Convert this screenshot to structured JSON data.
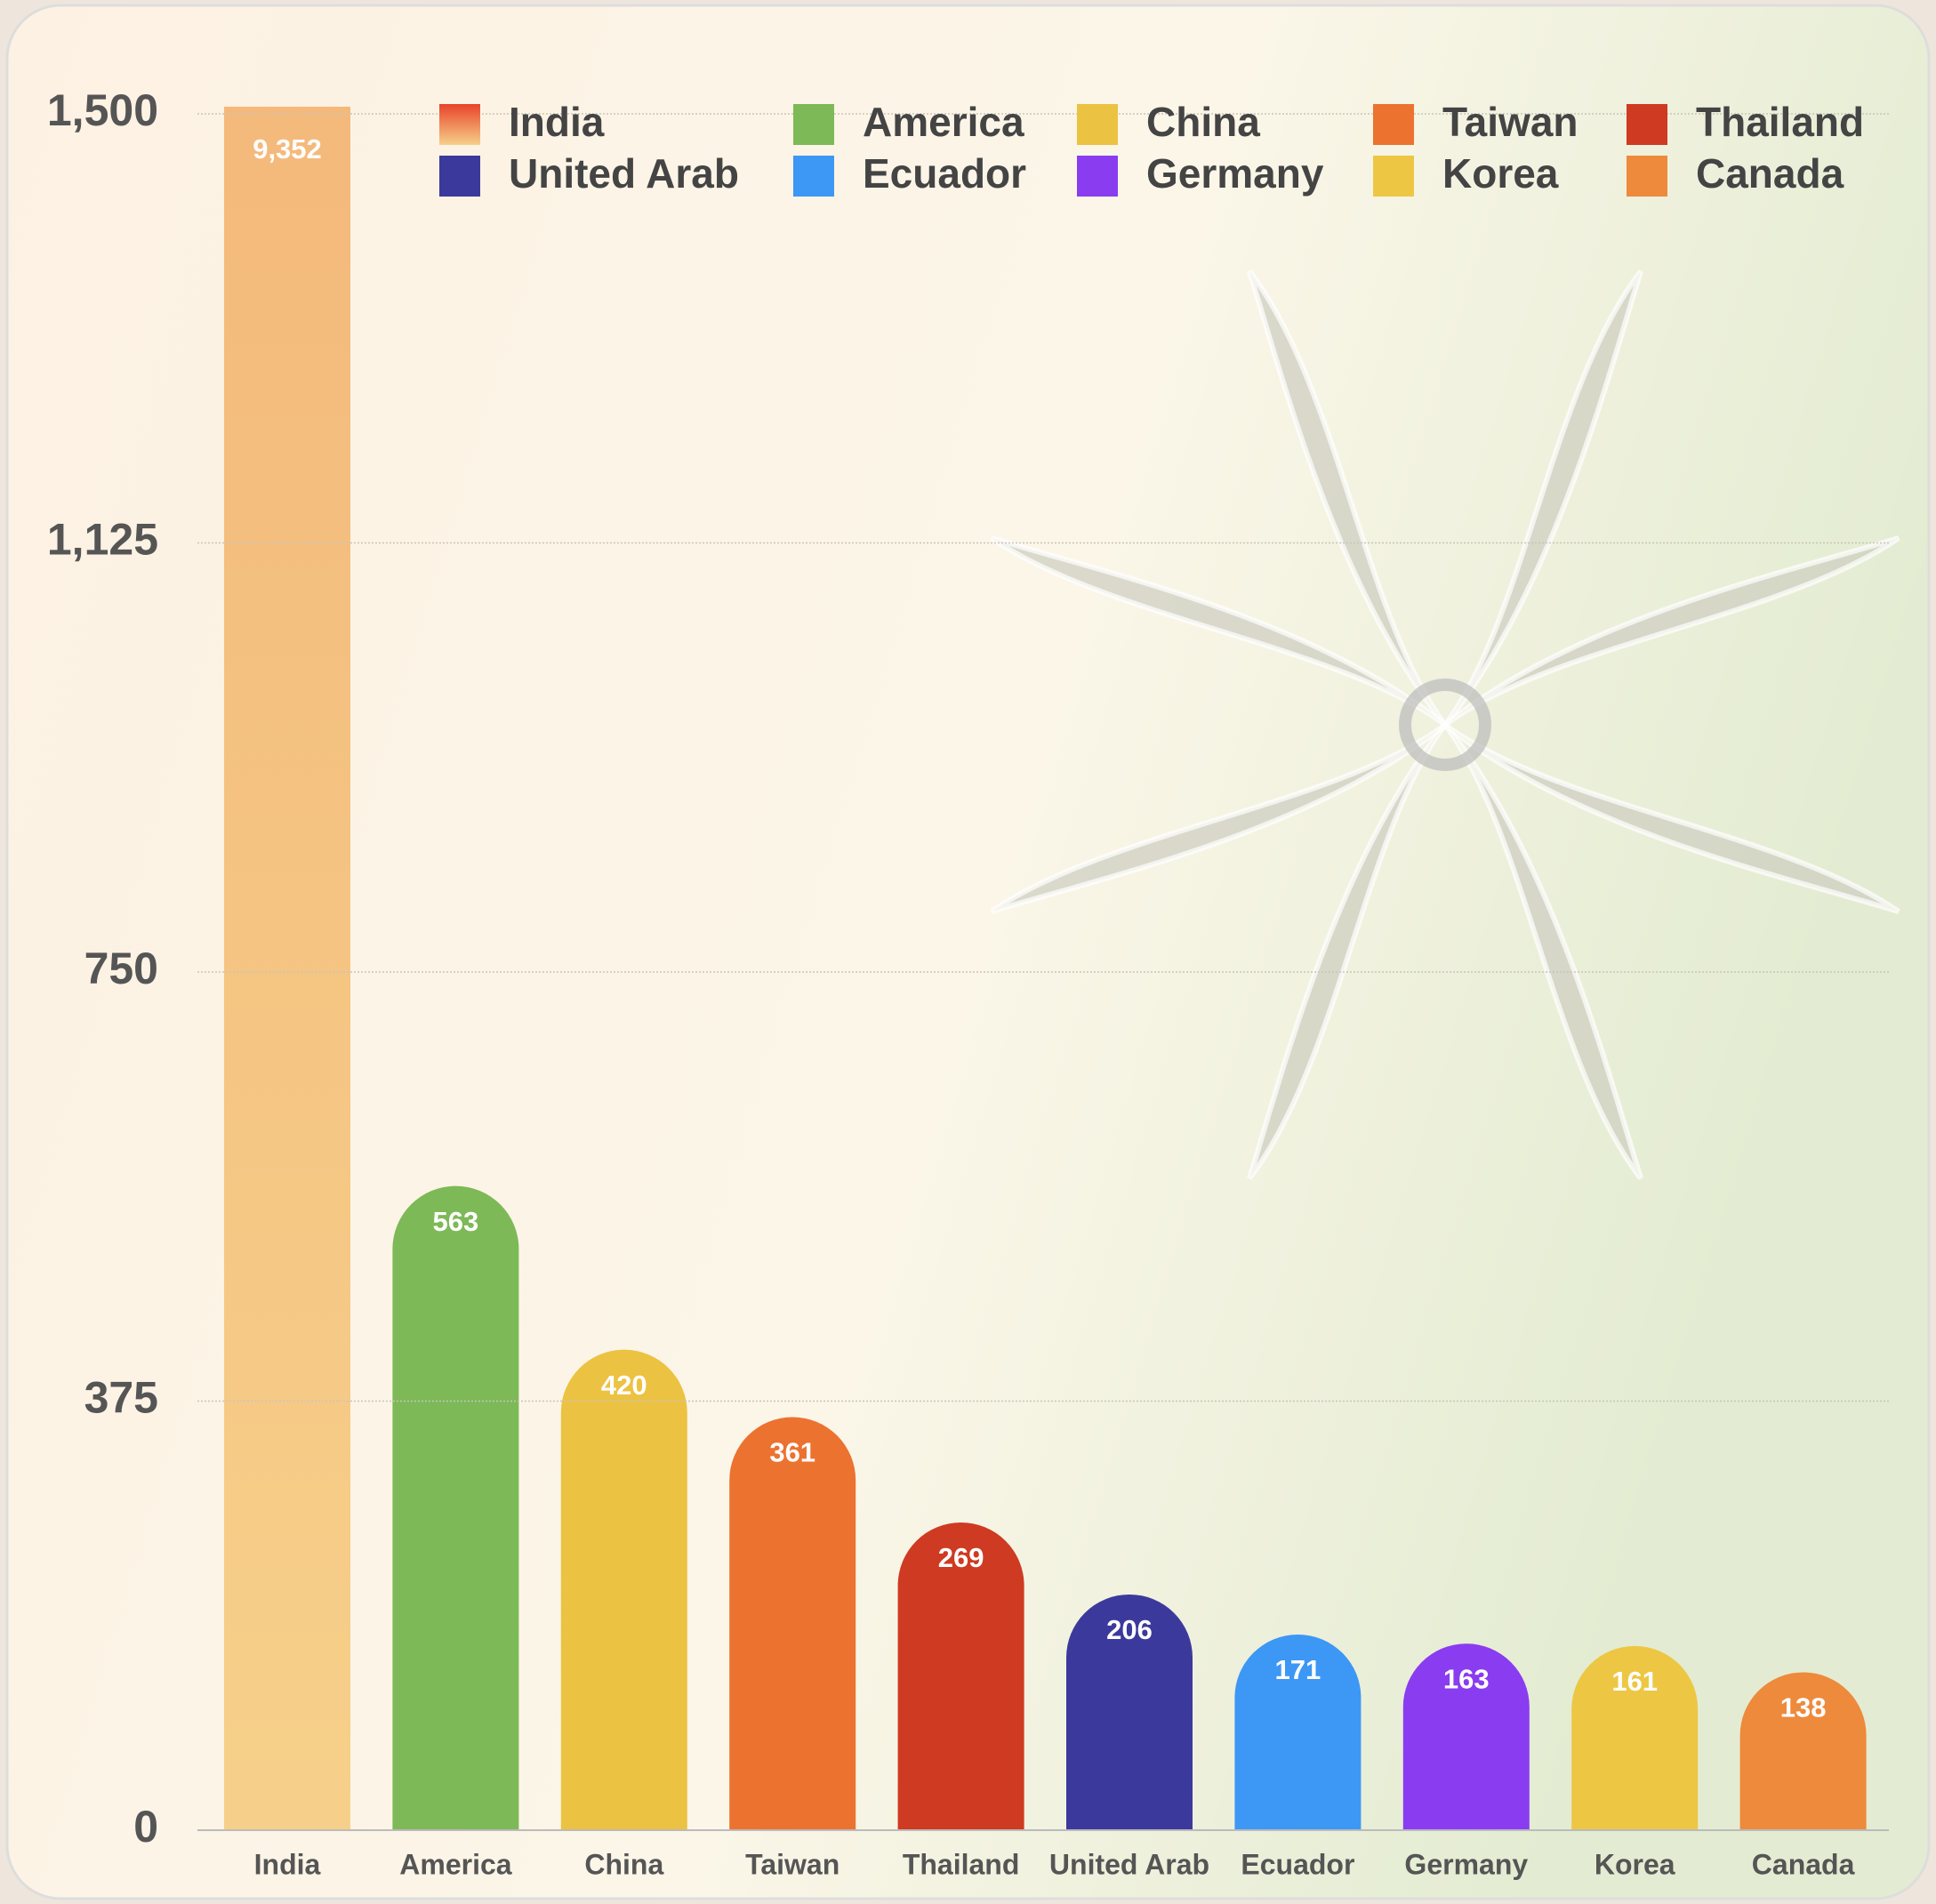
{
  "chart_data": {
    "type": "bar",
    "categories": [
      "India",
      "America",
      "China",
      "Taiwan",
      "Thailand",
      "United Arab",
      "Ecuador",
      "Germany",
      "Korea",
      "Canada"
    ],
    "values": [
      9352,
      563,
      420,
      361,
      269,
      206,
      171,
      163,
      161,
      138
    ],
    "value_labels": [
      "9,352",
      "563",
      "420",
      "361",
      "269",
      "206",
      "171",
      "163",
      "161",
      "138"
    ],
    "colors": [
      "#e8432a",
      "#7db957",
      "#ecc242",
      "#ec7230",
      "#cf3a22",
      "#3b3a9c",
      "#3d97f5",
      "#8a3cf0",
      "#edc744",
      "#ee8a3c"
    ],
    "ylim": [
      0,
      1500
    ],
    "yticks": [
      0,
      375,
      750,
      {
        "value": 1125,
        "label": "1,125"
      },
      {
        "value": 1500,
        "label": "1,500"
      }
    ],
    "grid": true,
    "legend": "top-right"
  }
}
